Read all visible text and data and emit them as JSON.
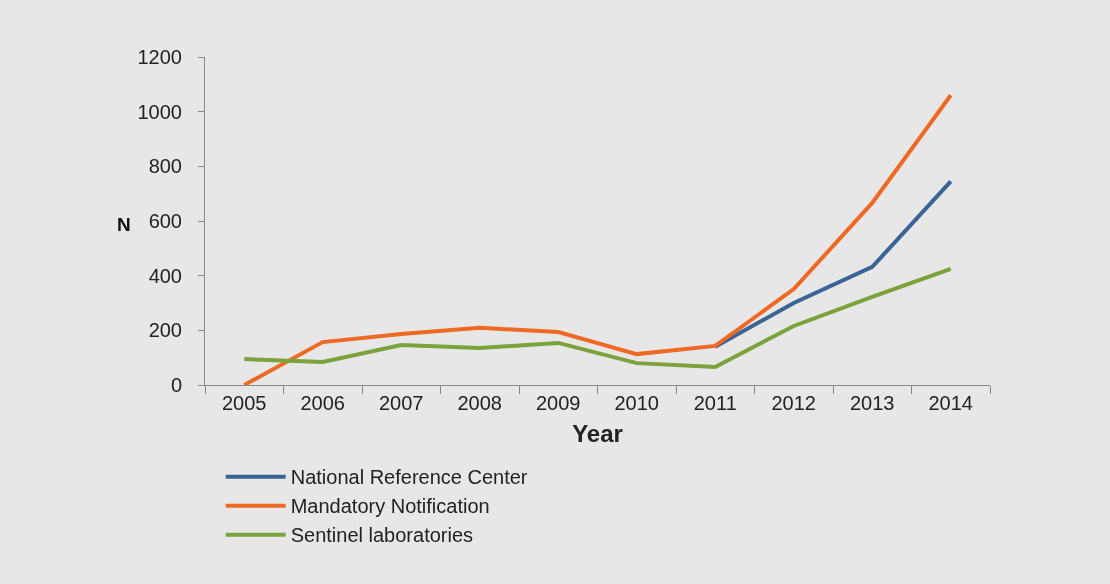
{
  "chart_data": {
    "type": "line",
    "xlabel": "Year",
    "ylabel": "N",
    "categories": [
      "2005",
      "2006",
      "2007",
      "2008",
      "2009",
      "2010",
      "2011",
      "2012",
      "2013",
      "2014"
    ],
    "series": [
      {
        "name": "National Reference Center",
        "color": "#3b6496",
        "values": [
          null,
          null,
          null,
          null,
          null,
          null,
          140,
          300,
          432,
          745
        ]
      },
      {
        "name": "Mandatory Notification",
        "color": "#ee6a24",
        "values": [
          0,
          157,
          187,
          209,
          194,
          113,
          143,
          351,
          666,
          1060
        ]
      },
      {
        "name": "Sentinel laboratories",
        "color": "#7ba23b",
        "values": [
          95,
          84,
          146,
          135,
          154,
          80,
          66,
          216,
          322,
          425
        ]
      }
    ],
    "ylim": [
      0,
      1200
    ],
    "yticks": [
      0,
      200,
      400,
      600,
      800,
      1000,
      1200
    ],
    "grid": false,
    "legend": "bottom",
    "marker": "none",
    "line_style": "solid"
  }
}
